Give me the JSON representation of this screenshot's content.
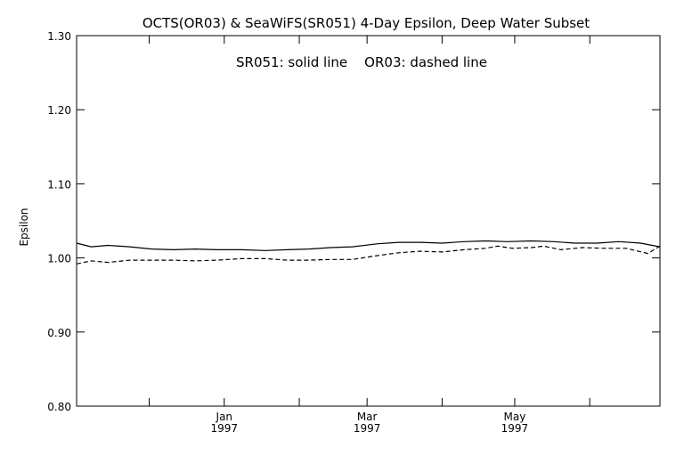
{
  "chart_data": {
    "type": "line",
    "title": "OCTS(OR03) & SeaWiFS(SR051) 4-Day Epsilon, Deep Water Subset",
    "xlabel": "",
    "ylabel": "Epsilon",
    "annotation": "SR051: solid line    OR03: dashed line",
    "ylim": [
      0.8,
      1.3
    ],
    "xlim": [
      "1996-11-01",
      "1997-06-30"
    ],
    "y_ticks": [
      "0.80",
      "0.90",
      "1.00",
      "1.10",
      "1.20",
      "1.30"
    ],
    "y_tick_values": [
      0.8,
      0.9,
      1.0,
      1.1,
      1.2,
      1.3
    ],
    "x_tick_labels": [
      {
        "date": "1997-01-01",
        "month": "Jan",
        "year": "1997"
      },
      {
        "date": "1997-03-01",
        "month": "Mar",
        "year": "1997"
      },
      {
        "date": "1997-05-01",
        "month": "May",
        "year": "1997"
      }
    ],
    "x_minor_ticks": [
      "1996-12-01",
      "1997-02-01",
      "1997-04-01",
      "1997-06-01"
    ],
    "grid": false,
    "series": [
      {
        "name": "SR051",
        "style": "solid",
        "x": [
          "1996-11-01",
          "1996-11-07",
          "1996-11-14",
          "1996-11-23",
          "1996-12-02",
          "1996-12-11",
          "1996-12-20",
          "1996-12-29",
          "1997-01-08",
          "1997-01-18",
          "1997-01-27",
          "1997-02-05",
          "1997-02-14",
          "1997-02-23",
          "1997-03-05",
          "1997-03-14",
          "1997-03-23",
          "1997-04-01",
          "1997-04-10",
          "1997-04-19",
          "1997-04-28",
          "1997-05-08",
          "1997-05-17",
          "1997-05-26",
          "1997-06-04",
          "1997-06-13",
          "1997-06-22",
          "1997-06-30"
        ],
        "y": [
          1.02,
          1.015,
          1.017,
          1.015,
          1.012,
          1.011,
          1.012,
          1.011,
          1.011,
          1.01,
          1.011,
          1.012,
          1.014,
          1.015,
          1.019,
          1.021,
          1.021,
          1.02,
          1.022,
          1.023,
          1.022,
          1.023,
          1.022,
          1.02,
          1.02,
          1.022,
          1.02,
          1.015
        ]
      },
      {
        "name": "OR03",
        "style": "dashed",
        "x": [
          "1996-11-01",
          "1996-11-07",
          "1996-11-14",
          "1996-11-23",
          "1996-12-02",
          "1996-12-11",
          "1996-12-20",
          "1996-12-29",
          "1997-01-08",
          "1997-01-18",
          "1997-01-27",
          "1997-02-05",
          "1997-02-14",
          "1997-02-23",
          "1997-03-05",
          "1997-03-14",
          "1997-03-23",
          "1997-04-01",
          "1997-04-10",
          "1997-04-19",
          "1997-04-24",
          "1997-04-30",
          "1997-05-08",
          "1997-05-13",
          "1997-05-20",
          "1997-05-29",
          "1997-06-07",
          "1997-06-16",
          "1997-06-25",
          "1997-06-30"
        ],
        "y": [
          0.992,
          0.996,
          0.994,
          0.997,
          0.997,
          0.997,
          0.996,
          0.997,
          0.999,
          0.999,
          0.997,
          0.997,
          0.998,
          0.998,
          1.003,
          1.007,
          1.009,
          1.008,
          1.011,
          1.013,
          1.016,
          1.013,
          1.014,
          1.016,
          1.011,
          1.014,
          1.013,
          1.013,
          1.006,
          1.016
        ]
      }
    ]
  }
}
